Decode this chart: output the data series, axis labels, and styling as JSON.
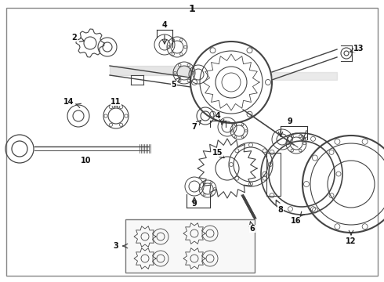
{
  "title": "1",
  "bg_color": "#ffffff",
  "border_color": "#555555",
  "line_color": "#444444",
  "label_color": "#111111",
  "font_size": 7,
  "figsize": [
    4.9,
    3.6
  ],
  "dpi": 100
}
